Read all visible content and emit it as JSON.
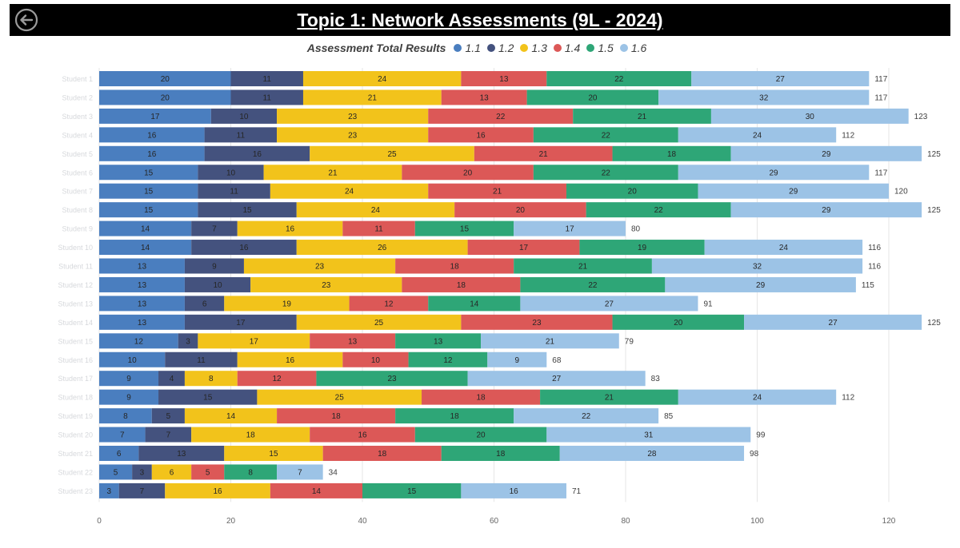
{
  "header": {
    "title": "Topic 1: Network Assessments (9L - 2024)"
  },
  "icons": {
    "back": "back-arrow-circle-icon"
  },
  "colors": {
    "s11": "#4a7ebf",
    "s12": "#44527e",
    "s13": "#f2c31b",
    "s14": "#dc5857",
    "s15": "#2ea677",
    "s16": "#9cc3e6"
  },
  "chart_data": {
    "type": "bar",
    "orientation": "horizontal",
    "stacked": true,
    "legend_title": "Assessment Total Results",
    "legend_position": "top-center",
    "xlim": [
      0,
      120
    ],
    "xticks": [
      0,
      20,
      40,
      60,
      80,
      100,
      120
    ],
    "grid": true,
    "categories": [
      "Student 1",
      "Student 2",
      "Student 3",
      "Student 4",
      "Student 5",
      "Student 6",
      "Student 7",
      "Student 8",
      "Student 9",
      "Student 10",
      "Student 11",
      "Student 12",
      "Student 13",
      "Student 14",
      "Student 15",
      "Student 16",
      "Student 17",
      "Student 18",
      "Student 19",
      "Student 20",
      "Student 21",
      "Student 22",
      "Student 23"
    ],
    "series": [
      {
        "name": "1.1",
        "color": "#4a7ebf",
        "values": [
          20,
          20,
          17,
          16,
          16,
          15,
          15,
          15,
          14,
          14,
          13,
          13,
          13,
          13,
          12,
          10,
          9,
          9,
          8,
          7,
          6,
          5,
          3
        ]
      },
      {
        "name": "1.2",
        "color": "#44527e",
        "values": [
          11,
          11,
          10,
          11,
          16,
          10,
          11,
          15,
          7,
          16,
          9,
          10,
          6,
          17,
          3,
          11,
          4,
          15,
          5,
          7,
          13,
          3,
          7
        ]
      },
      {
        "name": "1.3",
        "color": "#f2c31b",
        "values": [
          24,
          21,
          23,
          23,
          25,
          21,
          24,
          24,
          16,
          26,
          23,
          23,
          19,
          25,
          17,
          16,
          8,
          25,
          14,
          18,
          15,
          6,
          16
        ]
      },
      {
        "name": "1.4",
        "color": "#dc5857",
        "values": [
          13,
          13,
          22,
          16,
          21,
          20,
          21,
          20,
          11,
          17,
          18,
          18,
          12,
          23,
          13,
          10,
          12,
          18,
          18,
          16,
          18,
          5,
          14
        ]
      },
      {
        "name": "1.5",
        "color": "#2ea677",
        "values": [
          22,
          20,
          21,
          22,
          18,
          22,
          20,
          22,
          15,
          19,
          21,
          22,
          14,
          20,
          13,
          12,
          23,
          21,
          18,
          20,
          18,
          8,
          15
        ]
      },
      {
        "name": "1.6",
        "color": "#9cc3e6",
        "values": [
          27,
          32,
          30,
          24,
          29,
          29,
          29,
          29,
          17,
          24,
          32,
          29,
          27,
          27,
          21,
          9,
          27,
          24,
          22,
          31,
          28,
          7,
          16
        ]
      }
    ],
    "totals": [
      117,
      117,
      123,
      112,
      125,
      117,
      120,
      125,
      80,
      116,
      116,
      115,
      91,
      125,
      79,
      68,
      83,
      112,
      85,
      99,
      98,
      34,
      71
    ]
  }
}
